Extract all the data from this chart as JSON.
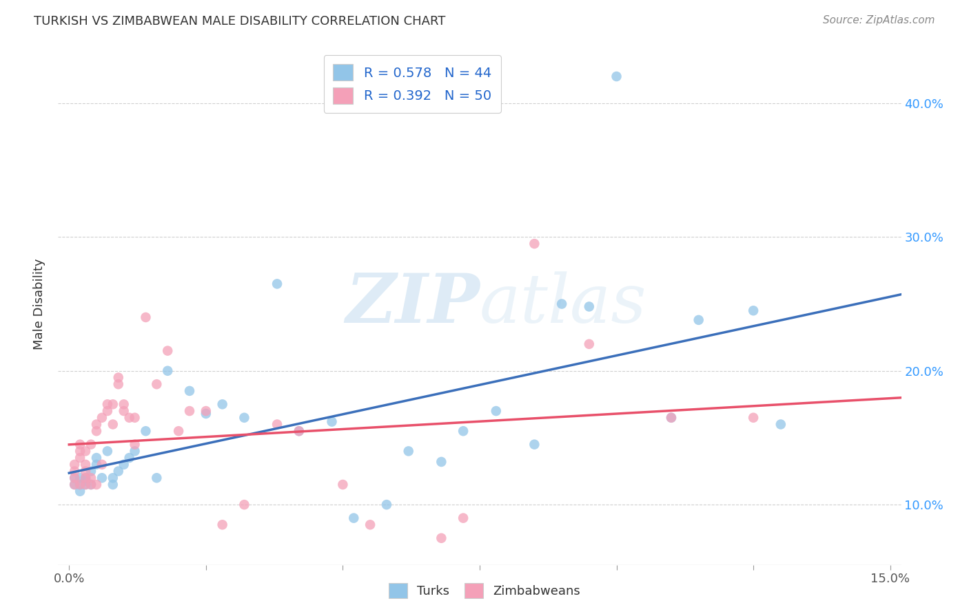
{
  "title": "TURKISH VS ZIMBABWEAN MALE DISABILITY CORRELATION CHART",
  "source": "Source: ZipAtlas.com",
  "ylabel": "Male Disability",
  "xlim": [
    -0.002,
    0.152
  ],
  "ylim": [
    0.055,
    0.445
  ],
  "blue_color": "#92C5E8",
  "pink_color": "#F4A0B8",
  "blue_line_color": "#3B6FBA",
  "pink_line_color": "#E8506A",
  "turks_R": 0.578,
  "turks_N": 44,
  "zimbabweans_R": 0.392,
  "zimbabweans_N": 50,
  "legend_label_turks": "Turks",
  "legend_label_zimbabweans": "Zimbabweans",
  "turks_x": [
    0.001,
    0.001,
    0.002,
    0.002,
    0.002,
    0.003,
    0.003,
    0.003,
    0.004,
    0.004,
    0.005,
    0.005,
    0.006,
    0.007,
    0.008,
    0.008,
    0.009,
    0.01,
    0.011,
    0.012,
    0.014,
    0.016,
    0.018,
    0.022,
    0.025,
    0.028,
    0.032,
    0.038,
    0.042,
    0.048,
    0.052,
    0.058,
    0.062,
    0.068,
    0.072,
    0.078,
    0.085,
    0.09,
    0.095,
    0.1,
    0.11,
    0.115,
    0.125,
    0.13
  ],
  "turks_y": [
    0.115,
    0.12,
    0.11,
    0.115,
    0.12,
    0.115,
    0.118,
    0.12,
    0.115,
    0.125,
    0.13,
    0.135,
    0.12,
    0.14,
    0.115,
    0.12,
    0.125,
    0.13,
    0.135,
    0.14,
    0.155,
    0.12,
    0.2,
    0.185,
    0.168,
    0.175,
    0.165,
    0.265,
    0.155,
    0.162,
    0.09,
    0.1,
    0.14,
    0.132,
    0.155,
    0.17,
    0.145,
    0.25,
    0.248,
    0.42,
    0.165,
    0.238,
    0.245,
    0.16
  ],
  "zimbabweans_x": [
    0.001,
    0.001,
    0.001,
    0.001,
    0.002,
    0.002,
    0.002,
    0.002,
    0.003,
    0.003,
    0.003,
    0.003,
    0.003,
    0.004,
    0.004,
    0.004,
    0.005,
    0.005,
    0.005,
    0.006,
    0.006,
    0.007,
    0.007,
    0.008,
    0.008,
    0.009,
    0.009,
    0.01,
    0.01,
    0.011,
    0.012,
    0.012,
    0.014,
    0.016,
    0.018,
    0.02,
    0.022,
    0.025,
    0.028,
    0.032,
    0.038,
    0.042,
    0.05,
    0.055,
    0.068,
    0.072,
    0.085,
    0.095,
    0.11,
    0.125
  ],
  "zimbabweans_y": [
    0.115,
    0.12,
    0.125,
    0.13,
    0.115,
    0.135,
    0.14,
    0.145,
    0.115,
    0.12,
    0.125,
    0.13,
    0.14,
    0.115,
    0.12,
    0.145,
    0.115,
    0.155,
    0.16,
    0.13,
    0.165,
    0.17,
    0.175,
    0.16,
    0.175,
    0.19,
    0.195,
    0.17,
    0.175,
    0.165,
    0.145,
    0.165,
    0.24,
    0.19,
    0.215,
    0.155,
    0.17,
    0.17,
    0.085,
    0.1,
    0.16,
    0.155,
    0.115,
    0.085,
    0.075,
    0.09,
    0.295,
    0.22,
    0.165,
    0.165
  ],
  "watermark_zip": "ZIP",
  "watermark_atlas": "atlas",
  "background_color": "#ffffff",
  "grid_color": "#d0d0d0"
}
